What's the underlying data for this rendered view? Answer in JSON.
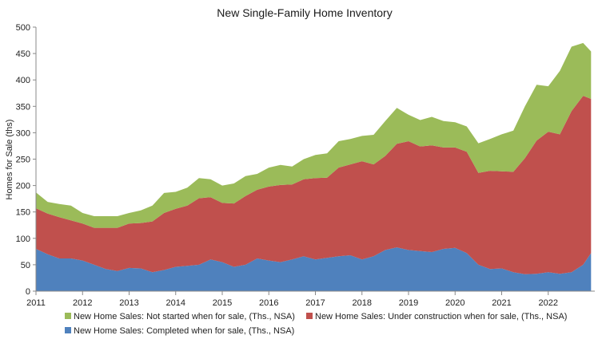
{
  "chart_data": {
    "type": "area",
    "stacked": true,
    "title": "New Single-Family Home Inventory",
    "xlabel": "",
    "ylabel": "Homes for Sale (ths)",
    "xlim": [
      2011,
      2023
    ],
    "ylim": [
      0,
      500
    ],
    "x_ticks": [
      "2011",
      "2012",
      "2013",
      "2014",
      "2015",
      "2016",
      "2017",
      "2018",
      "2019",
      "2020",
      "2021",
      "2022"
    ],
    "y_ticks": [
      "0",
      "50",
      "100",
      "150",
      "200",
      "250",
      "300",
      "350",
      "400",
      "450",
      "500"
    ],
    "grid": false,
    "legend_position": "bottom",
    "x": [
      2011.0,
      2011.25,
      2011.5,
      2011.75,
      2012.0,
      2012.25,
      2012.5,
      2012.75,
      2013.0,
      2013.25,
      2013.5,
      2013.75,
      2014.0,
      2014.25,
      2014.5,
      2014.75,
      2015.0,
      2015.25,
      2015.5,
      2015.75,
      2016.0,
      2016.25,
      2016.5,
      2016.75,
      2017.0,
      2017.25,
      2017.5,
      2017.75,
      2018.0,
      2018.25,
      2018.5,
      2018.75,
      2019.0,
      2019.25,
      2019.5,
      2019.75,
      2020.0,
      2020.25,
      2020.5,
      2020.75,
      2021.0,
      2021.25,
      2021.5,
      2021.75,
      2022.0,
      2022.25,
      2022.5,
      2022.75,
      2022.92
    ],
    "series": [
      {
        "name": "New Home Sales: Completed when for sale, (Ths., NSA)",
        "color": "#4f81bd",
        "values": [
          80,
          70,
          62,
          62,
          58,
          50,
          42,
          38,
          44,
          43,
          36,
          40,
          46,
          48,
          50,
          60,
          55,
          46,
          50,
          62,
          58,
          55,
          60,
          66,
          60,
          63,
          66,
          68,
          60,
          66,
          78,
          83,
          78,
          76,
          74,
          80,
          82,
          72,
          50,
          42,
          43,
          36,
          32,
          33,
          36,
          33,
          36,
          50,
          72
        ]
      },
      {
        "name": "New Home Sales: Under construction when for sale, (Ths., NSA)",
        "color": "#c0504d",
        "values": [
          77,
          77,
          78,
          72,
          70,
          70,
          78,
          82,
          84,
          86,
          96,
          108,
          110,
          114,
          126,
          118,
          112,
          120,
          130,
          130,
          140,
          146,
          142,
          146,
          154,
          152,
          168,
          172,
          186,
          174,
          178,
          196,
          206,
          198,
          202,
          192,
          190,
          192,
          174,
          186,
          184,
          190,
          220,
          252,
          266,
          264,
          305,
          320,
          292
        ]
      },
      {
        "name": "New Home Sales: Not started when for sale, (Ths., NSA)",
        "color": "#9bbb59",
        "values": [
          30,
          22,
          25,
          28,
          20,
          22,
          22,
          22,
          20,
          24,
          30,
          38,
          32,
          34,
          38,
          34,
          33,
          38,
          38,
          30,
          36,
          38,
          34,
          38,
          44,
          46,
          50,
          48,
          48,
          56,
          66,
          68,
          50,
          50,
          54,
          50,
          48,
          48,
          56,
          60,
          70,
          78,
          98,
          106,
          86,
          120,
          122,
          100,
          90
        ]
      }
    ],
    "legend": [
      "New Home Sales: Not started when for sale, (Ths., NSA)",
      "New Home Sales: Under construction when for sale, (Ths., NSA)",
      "New Home Sales: Completed when for sale, (Ths., NSA)"
    ]
  }
}
